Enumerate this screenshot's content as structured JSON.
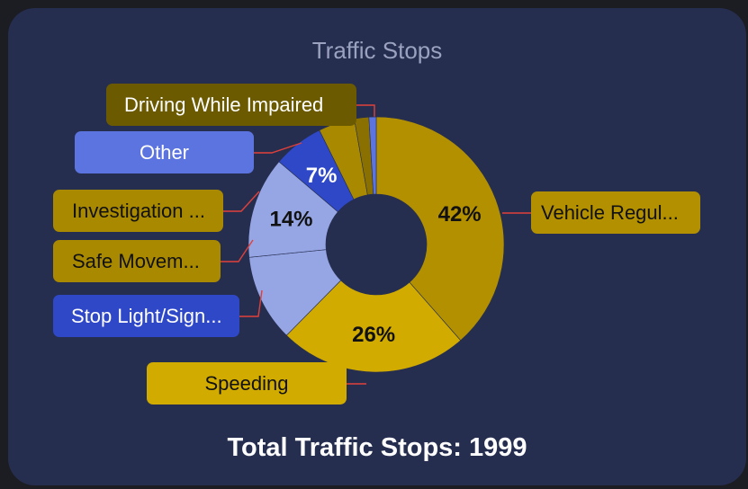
{
  "chart_data": {
    "type": "pie",
    "title": "Traffic Stops",
    "footer": "Total Traffic Stops: 1999",
    "slices": [
      {
        "label": "Vehicle Regul...",
        "value": 42,
        "display": "42%",
        "color": "#b39000",
        "label_bg": "#b39000",
        "label_fg": "#111111",
        "pct_fg": "#111111"
      },
      {
        "label": "Speeding",
        "value": 26,
        "display": "26%",
        "color": "#d1ab00",
        "label_bg": "#d1ab00",
        "label_fg": "#111111",
        "pct_fg": "#111111"
      },
      {
        "label": "Stop Light/Sign...",
        "value": 12,
        "display": "",
        "color": "#96a6e5",
        "label_bg": "#2f48c8",
        "label_fg": "#ffffff",
        "pct_fg": "#111111"
      },
      {
        "label": "Safe Movem...",
        "value": 14,
        "display": "14%",
        "color": "#96a6e5",
        "label_bg": "#a88900",
        "label_fg": "#111111",
        "pct_fg": "#111111"
      },
      {
        "label": "Investigation ...",
        "value": 7,
        "display": "7%",
        "color": "#2f48c8",
        "label_bg": "#a88900",
        "label_fg": "#111111",
        "pct_fg": "#ffffff"
      },
      {
        "label": "Other",
        "value": 5,
        "display": "",
        "color": "#a88900",
        "label_bg": "#5c74df",
        "label_fg": "#ffffff",
        "pct_fg": "#ffffff"
      },
      {
        "label": "Driving While Impaired",
        "value": 2,
        "display": "",
        "color": "#8a7000",
        "label_bg": "#6b5a00",
        "label_fg": "#ffffff",
        "pct_fg": "#ffffff"
      },
      {
        "label": "",
        "value": 1,
        "display": "",
        "color": "#5c74df",
        "label_bg": "",
        "label_fg": "",
        "pct_fg": ""
      }
    ],
    "leader_color": "#e0403a"
  }
}
